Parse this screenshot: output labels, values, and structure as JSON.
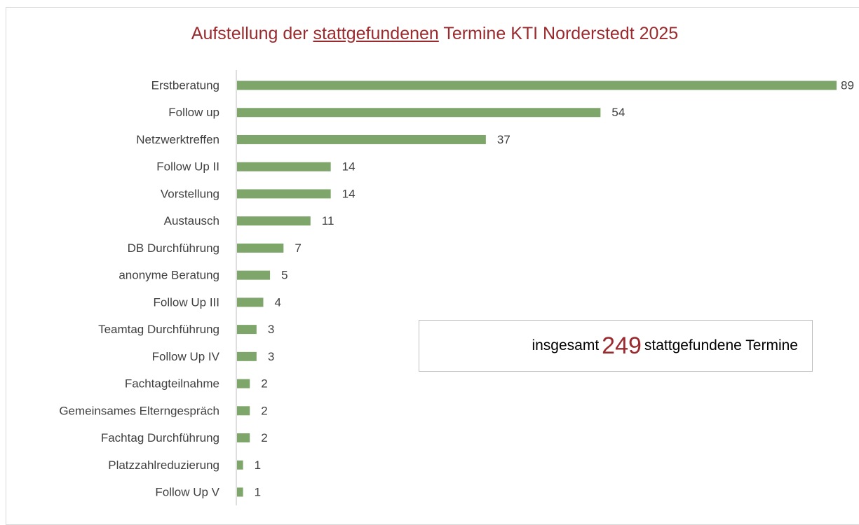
{
  "chart_data": {
    "type": "barh",
    "title": [
      "Aufstellung der",
      "stattgefundenen",
      "Termine KTI Norderstedt 2025"
    ],
    "categories": [
      "Erstberatung",
      "Follow up",
      "Netzwerktreffen",
      "Follow Up II",
      "Vorstellung",
      "Austausch",
      "DB Durchführung",
      "anonyme Beratung",
      "Follow Up III",
      "Teamtag Durchführung",
      "Follow Up IV",
      "Fachtagteilnahme",
      "Gemeinsames Elterngespräch",
      "Fachtag Durchführung",
      "Platzzahlreduzierung",
      "Follow Up V"
    ],
    "values": [
      89,
      54,
      37,
      14,
      14,
      11,
      7,
      5,
      4,
      3,
      3,
      2,
      2,
      2,
      1,
      1
    ],
    "color": "#7ea66b",
    "annotation": {
      "prefix": "insgesamt",
      "value": 249,
      "suffix": "stattgefundene Termine"
    }
  }
}
